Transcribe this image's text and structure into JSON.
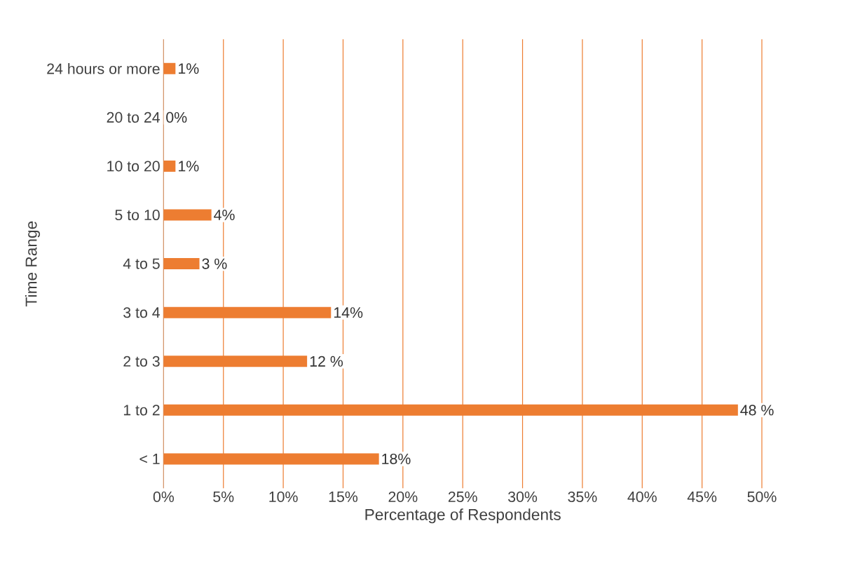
{
  "chart_data": {
    "type": "bar",
    "orientation": "horizontal",
    "xlabel": "Percentage of Respondents",
    "ylabel": "Time Range",
    "categories": [
      "24 hours or more",
      "20 to 24",
      "10 to 20",
      "5 to 10",
      "4 to 5",
      "3 to 4",
      "2 to 3",
      "1 to 2",
      "< 1"
    ],
    "values": [
      1,
      0,
      1,
      4,
      3,
      14,
      12,
      48,
      18
    ],
    "color": "#ed7d31",
    "xlim": [
      0,
      50
    ],
    "xticks": [
      {
        "value": 0,
        "label": "0%"
      },
      {
        "value": 5,
        "label": "5%"
      },
      {
        "value": 10,
        "label": "10%"
      },
      {
        "value": 15,
        "label": "15%"
      },
      {
        "value": 20,
        "label": "20%"
      },
      {
        "value": 25,
        "label": "25%"
      },
      {
        "value": 30,
        "label": "30%"
      },
      {
        "value": 35,
        "label": "35%"
      },
      {
        "value": 40,
        "label": "40%"
      },
      {
        "value": 45,
        "label": "45%"
      },
      {
        "value": 50,
        "label": "50%"
      }
    ],
    "value_labels": [
      "1%",
      "0%",
      "1%",
      "4%",
      "3 %",
      "14%",
      "12 %",
      "48 %",
      "18%"
    ],
    "grid": "x"
  }
}
